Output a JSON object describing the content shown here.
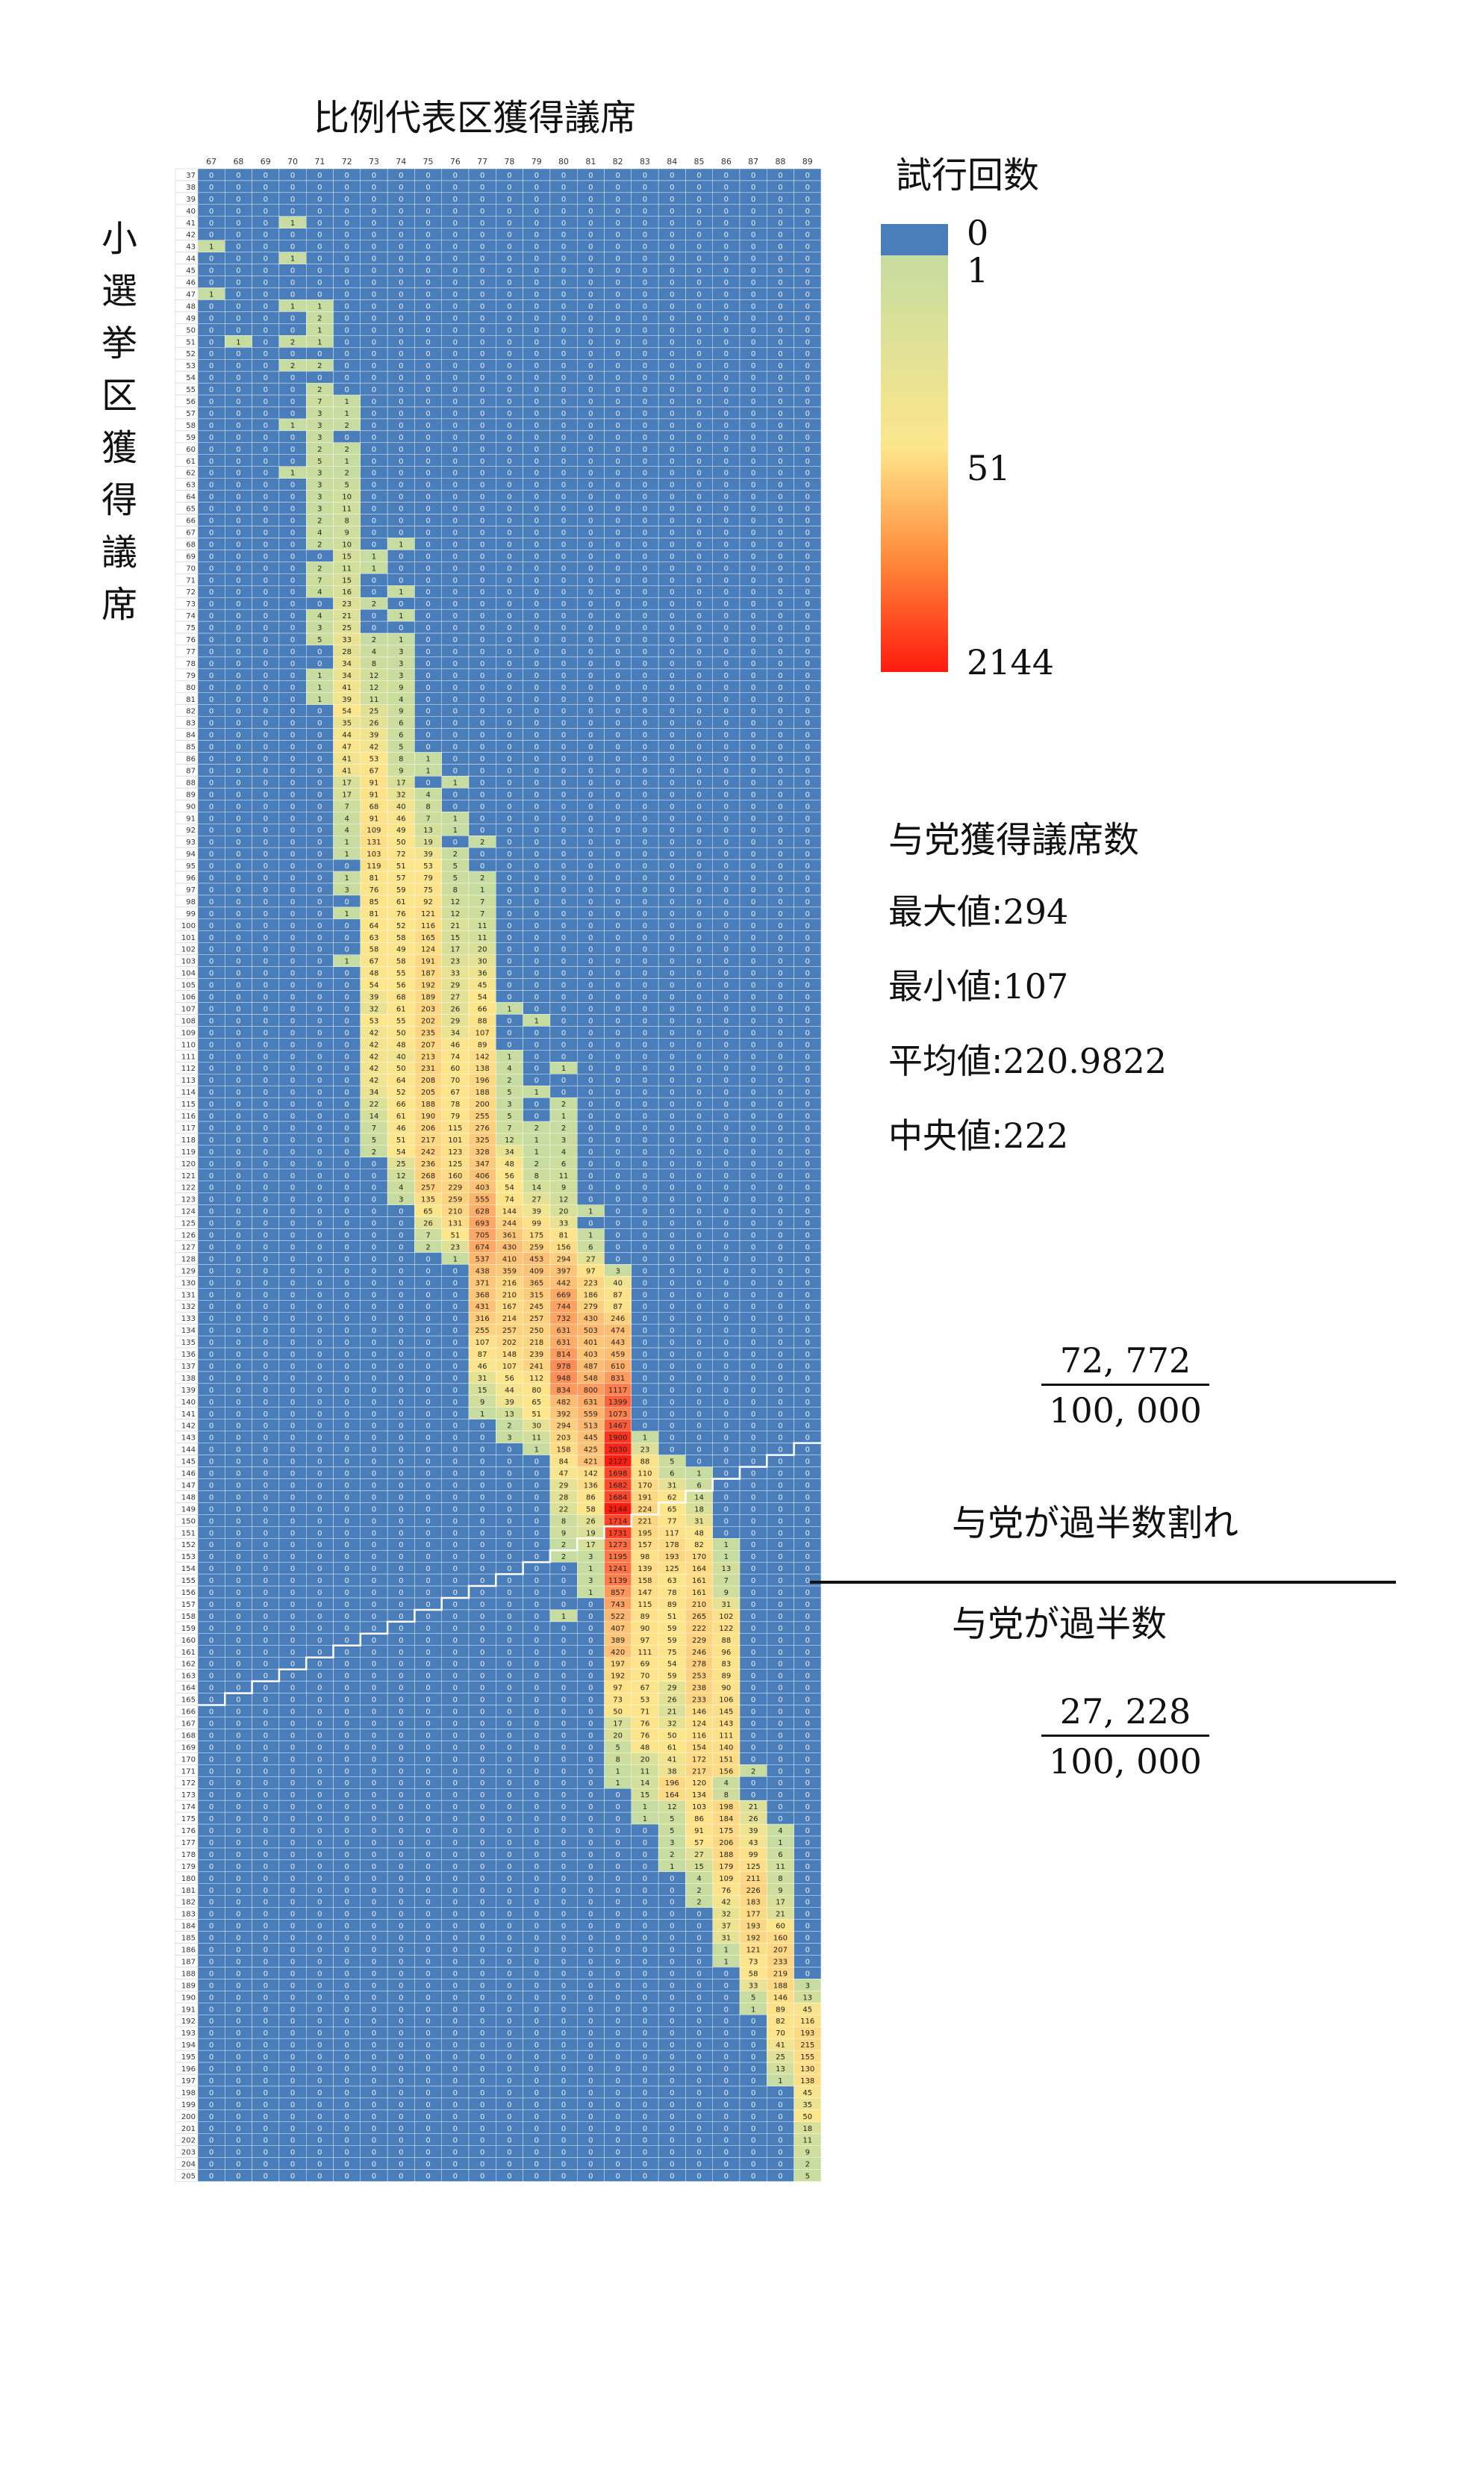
{
  "title": "比例代表区獲得議席",
  "y_axis_title": "小選挙区獲得議席",
  "legend": {
    "title": "試行回数",
    "stops": [
      "0",
      "1",
      "51",
      "2144"
    ],
    "colors": {
      "zero": "#4a7ebb",
      "low": "#c6dca0",
      "mid": "#fde68b",
      "high": "#ff1a10"
    }
  },
  "stats": {
    "title": "与党獲得議席数",
    "rows": [
      {
        "label": "最大値:",
        "value": "294"
      },
      {
        "label": "最小値:",
        "value": "107"
      },
      {
        "label": "平均値:",
        "value": "220.9822"
      },
      {
        "label": "中央値:",
        "value": "222"
      }
    ]
  },
  "above": {
    "label": "与党が過半数割れ",
    "numerator": "72, 772",
    "denominator": "100, 000"
  },
  "below": {
    "label": "与党が過半数",
    "numerator": "27, 228",
    "denominator": "100, 000"
  },
  "chart_data": {
    "type": "heatmap",
    "title": "比例代表区獲得議席",
    "xlabel": "比例代表区獲得議席",
    "ylabel": "小選挙区獲得議席",
    "x": [
      67,
      68,
      69,
      70,
      71,
      72,
      73,
      74,
      75,
      76,
      77,
      78,
      79,
      80,
      81,
      82,
      83,
      84,
      85,
      86,
      87,
      88,
      89
    ],
    "y_range": [
      37,
      205
    ],
    "total_trials": 100000,
    "majority_threshold": 233,
    "colorscale": {
      "min": 0,
      "low": 1,
      "mid": 51,
      "max": 2144
    },
    "nonzero_cells": {
      "41": {
        "70": 1
      },
      "43": {
        "67": 1
      },
      "44": {
        "70": 1
      },
      "47": {
        "67": 1
      },
      "48": {
        "70": 1,
        "71": 1
      },
      "49": {
        "71": 2
      },
      "50": {
        "71": 1
      },
      "51": {
        "68": 1,
        "70": 2,
        "71": 1
      },
      "53": {
        "70": 2,
        "71": 2
      },
      "55": {
        "71": 2
      },
      "56": {
        "71": 7,
        "72": 1
      },
      "57": {
        "71": 3,
        "72": 1
      },
      "58": {
        "70": 1,
        "71": 3,
        "72": 2
      },
      "59": {
        "71": 3
      },
      "60": {
        "71": 2,
        "72": 2
      },
      "61": {
        "71": 5,
        "72": 1
      },
      "62": {
        "70": 1,
        "71": 3,
        "72": 2
      },
      "63": {
        "71": 3,
        "72": 5
      },
      "64": {
        "71": 3,
        "72": 10
      },
      "65": {
        "71": 3,
        "72": 11
      },
      "66": {
        "71": 2,
        "72": 8
      },
      "67": {
        "71": 4,
        "72": 9
      },
      "68": {
        "71": 2,
        "72": 10,
        "74": 1
      },
      "69": {
        "72": 15,
        "73": 1
      },
      "70": {
        "71": 2,
        "72": 11,
        "73": 1
      },
      "71": {
        "71": 7,
        "72": 15
      },
      "72": {
        "71": 4,
        "72": 16,
        "74": 1
      },
      "73": {
        "72": 23,
        "73": 2
      },
      "74": {
        "71": 4,
        "72": 21,
        "74": 1
      },
      "75": {
        "71": 3,
        "72": 25
      },
      "76": {
        "71": 5,
        "72": 33,
        "73": 2,
        "74": 1
      },
      "77": {
        "72": 28,
        "73": 4,
        "74": 3
      },
      "78": {
        "72": 34,
        "73": 8,
        "74": 3
      },
      "79": {
        "71": 1,
        "72": 34,
        "73": 12,
        "74": 3
      },
      "80": {
        "71": 1,
        "72": 41,
        "73": 12,
        "74": 9
      },
      "81": {
        "71": 1,
        "72": 39,
        "73": 11,
        "74": 4
      },
      "82": {
        "72": 54,
        "73": 25,
        "74": 9
      },
      "83": {
        "72": 35,
        "73": 26,
        "74": 6
      },
      "84": {
        "72": 44,
        "73": 39,
        "74": 6
      },
      "85": {
        "72": 47,
        "73": 42,
        "74": 5
      },
      "86": {
        "72": 41,
        "73": 53,
        "74": 8,
        "75": 1
      },
      "87": {
        "72": 41,
        "73": 67,
        "74": 9,
        "75": 1
      },
      "88": {
        "72": 17,
        "73": 91,
        "74": 17,
        "76": 1
      },
      "89": {
        "72": 17,
        "73": 91,
        "74": 32,
        "75": 4
      },
      "90": {
        "72": 7,
        "73": 68,
        "74": 40,
        "75": 8
      },
      "91": {
        "72": 4,
        "73": 91,
        "74": 46,
        "75": 7,
        "76": 1
      },
      "92": {
        "72": 4,
        "73": 109,
        "74": 49,
        "75": 13,
        "76": 1
      },
      "93": {
        "72": 1,
        "73": 131,
        "74": 50,
        "75": 19,
        "77": 2
      },
      "94": {
        "72": 1,
        "73": 103,
        "74": 72,
        "75": 39,
        "76": 2
      },
      "95": {
        "73": 119,
        "74": 51,
        "75": 53,
        "76": 5
      },
      "96": {
        "72": 1,
        "73": 81,
        "74": 57,
        "75": 79,
        "76": 5,
        "77": 2
      },
      "97": {
        "72": 3,
        "73": 76,
        "74": 59,
        "75": 75,
        "76": 8,
        "77": 1
      },
      "98": {
        "73": 85,
        "74": 61,
        "75": 92,
        "76": 12,
        "77": 7
      },
      "99": {
        "72": 1,
        "73": 81,
        "74": 76,
        "75": 121,
        "76": 12,
        "77": 7
      },
      "100": {
        "73": 64,
        "74": 52,
        "75": 116,
        "76": 21,
        "77": 11
      },
      "101": {
        "73": 63,
        "74": 58,
        "75": 165,
        "76": 15,
        "77": 11
      },
      "102": {
        "73": 58,
        "74": 49,
        "75": 124,
        "76": 17,
        "77": 20
      },
      "103": {
        "72": 1,
        "73": 67,
        "74": 58,
        "75": 191,
        "76": 23,
        "77": 30
      },
      "104": {
        "73": 48,
        "74": 55,
        "75": 187,
        "76": 33,
        "77": 36
      },
      "105": {
        "73": 54,
        "74": 56,
        "75": 192,
        "76": 29,
        "77": 45
      },
      "106": {
        "73": 39,
        "74": 68,
        "75": 189,
        "76": 27,
        "77": 54
      },
      "107": {
        "73": 32,
        "74": 61,
        "75": 203,
        "76": 26,
        "77": 66,
        "78": 1
      },
      "108": {
        "73": 53,
        "74": 55,
        "75": 202,
        "76": 29,
        "77": 88,
        "79": 1
      },
      "109": {
        "73": 42,
        "74": 50,
        "75": 235,
        "76": 34,
        "77": 107
      },
      "110": {
        "73": 42,
        "74": 48,
        "75": 207,
        "76": 46,
        "77": 89
      },
      "111": {
        "73": 42,
        "74": 40,
        "75": 213,
        "76": 74,
        "77": 142,
        "78": 1
      },
      "112": {
        "73": 42,
        "74": 50,
        "75": 231,
        "76": 60,
        "77": 138,
        "78": 4,
        "80": 1
      },
      "113": {
        "73": 42,
        "74": 64,
        "75": 208,
        "76": 70,
        "77": 196,
        "78": 2
      },
      "114": {
        "73": 34,
        "74": 52,
        "75": 205,
        "76": 67,
        "77": 188,
        "78": 5,
        "79": 1
      },
      "115": {
        "73": 22,
        "74": 66,
        "75": 188,
        "76": 78,
        "77": 200,
        "78": 3,
        "80": 2
      },
      "116": {
        "73": 14,
        "74": 61,
        "75": 190,
        "76": 79,
        "77": 255,
        "78": 5,
        "80": 1
      },
      "117": {
        "73": 7,
        "74": 46,
        "75": 206,
        "76": 115,
        "77": 276,
        "78": 7,
        "79": 2,
        "80": 2
      },
      "118": {
        "73": 5,
        "74": 51,
        "75": 217,
        "76": 101,
        "77": 325,
        "78": 12,
        "79": 1,
        "80": 3
      },
      "119": {
        "73": 2,
        "74": 54,
        "75": 242,
        "76": 123,
        "77": 328,
        "78": 34,
        "79": 1,
        "80": 4
      },
      "120": {
        "74": 25,
        "75": 236,
        "76": 125,
        "77": 347,
        "78": 48,
        "79": 2,
        "80": 6
      },
      "121": {
        "74": 12,
        "75": 268,
        "76": 160,
        "77": 406,
        "78": 56,
        "79": 8,
        "80": 11
      },
      "122": {
        "74": 4,
        "75": 257,
        "76": 229,
        "77": 403,
        "78": 54,
        "79": 14,
        "80": 9
      },
      "123": {
        "74": 3,
        "75": 135,
        "76": 259,
        "77": 555,
        "78": 74,
        "79": 27,
        "80": 12
      },
      "124": {
        "75": 65,
        "76": 210,
        "77": 628,
        "78": 144,
        "79": 39,
        "80": 20,
        "81": 1
      },
      "125": {
        "75": 26,
        "76": 131,
        "77": 693,
        "78": 244,
        "79": 99,
        "80": 33
      },
      "126": {
        "75": 7,
        "76": 51,
        "77": 705,
        "78": 361,
        "79": 175,
        "80": 81,
        "81": 1
      },
      "127": {
        "75": 2,
        "76": 23,
        "77": 674,
        "78": 430,
        "79": 259,
        "80": 156,
        "81": 6
      },
      "128": {
        "76": 1,
        "77": 537,
        "78": 410,
        "79": 453,
        "80": 294,
        "81": 27
      },
      "129": {
        "77": 438,
        "78": 359,
        "79": 409,
        "80": 397,
        "81": 97,
        "82": 3
      },
      "130": {
        "77": 371,
        "78": 216,
        "79": 365,
        "80": 442,
        "81": 223,
        "82": 40
      },
      "131": {
        "77": 368,
        "78": 210,
        "79": 315,
        "80": 669,
        "81": 186,
        "82": 87
      },
      "132": {
        "77": 431,
        "78": 167,
        "79": 245,
        "80": 744,
        "81": 279,
        "82": 87
      },
      "133": {
        "77": 316,
        "78": 214,
        "79": 257,
        "80": 732,
        "81": 430,
        "82": 246
      },
      "134": {
        "77": 255,
        "78": 257,
        "79": 250,
        "80": 631,
        "81": 503,
        "82": 474
      },
      "135": {
        "77": 107,
        "78": 202,
        "79": 218,
        "80": 631,
        "81": 401,
        "82": 443
      },
      "136": {
        "77": 87,
        "78": 148,
        "79": 239,
        "80": 814,
        "81": 403,
        "82": 459
      },
      "137": {
        "77": 46,
        "78": 107,
        "79": 241,
        "80": 978,
        "81": 487,
        "82": 610
      },
      "138": {
        "77": 31,
        "78": 56,
        "79": 112,
        "80": 948,
        "81": 548,
        "82": 831
      },
      "139": {
        "77": 15,
        "78": 44,
        "79": 80,
        "80": 834,
        "81": 800,
        "82": 1117
      },
      "140": {
        "77": 9,
        "78": 39,
        "79": 65,
        "80": 482,
        "81": 631,
        "82": 1399
      },
      "141": {
        "77": 1,
        "78": 13,
        "79": 51,
        "80": 392,
        "81": 559,
        "82": 1073
      },
      "142": {
        "78": 2,
        "79": 30,
        "80": 294,
        "81": 513,
        "82": 1467
      },
      "143": {
        "78": 3,
        "79": 11,
        "80": 203,
        "81": 445,
        "82": 1900,
        "83": 1
      },
      "144": {
        "79": 1,
        "80": 158,
        "81": 425,
        "82": 2030,
        "83": 23
      },
      "145": {
        "80": 84,
        "81": 421,
        "82": 2127,
        "83": 88,
        "84": 5
      },
      "146": {
        "80": 47,
        "81": 142,
        "82": 1698,
        "83": 110,
        "84": 6,
        "85": 1
      },
      "147": {
        "80": 29,
        "81": 136,
        "82": 1682,
        "83": 170,
        "84": 31,
        "85": 6
      },
      "148": {
        "80": 28,
        "81": 86,
        "82": 1684,
        "83": 191,
        "84": 62,
        "85": 14
      },
      "149": {
        "80": 22,
        "81": 58,
        "82": 2144,
        "83": 224,
        "84": 65,
        "85": 18
      },
      "150": {
        "80": 8,
        "81": 26,
        "82": 1714,
        "83": 221,
        "84": 77,
        "85": 31
      },
      "151": {
        "80": 9,
        "81": 19,
        "82": 1731,
        "83": 195,
        "84": 117,
        "85": 48
      },
      "152": {
        "80": 2,
        "81": 17,
        "82": 1273,
        "83": 157,
        "84": 178,
        "85": 82,
        "86": 1
      },
      "153": {
        "80": 2,
        "81": 3,
        "82": 1195,
        "83": 98,
        "84": 193,
        "85": 170,
        "86": 1
      },
      "154": {
        "81": 1,
        "82": 1241,
        "83": 139,
        "84": 125,
        "85": 164,
        "86": 13
      },
      "155": {
        "81": 3,
        "82": 1139,
        "83": 158,
        "84": 63,
        "85": 161,
        "86": 7
      },
      "156": {
        "81": 1,
        "82": 857,
        "83": 147,
        "84": 78,
        "85": 161,
        "86": 9
      },
      "157": {
        "82": 743,
        "83": 115,
        "84": 89,
        "85": 210,
        "86": 31
      },
      "158": {
        "80": 1,
        "82": 522,
        "83": 89,
        "84": 51,
        "85": 265,
        "86": 102
      },
      "159": {
        "82": 407,
        "83": 90,
        "84": 59,
        "85": 222,
        "86": 122
      },
      "160": {
        "82": 389,
        "83": 97,
        "84": 59,
        "85": 229,
        "86": 88
      },
      "161": {
        "82": 420,
        "83": 111,
        "84": 75,
        "85": 246,
        "86": 96
      },
      "162": {
        "82": 197,
        "83": 69,
        "84": 54,
        "85": 278,
        "86": 83
      },
      "163": {
        "82": 192,
        "83": 70,
        "84": 59,
        "85": 253,
        "86": 89
      },
      "164": {
        "82": 97,
        "83": 67,
        "84": 29,
        "85": 238,
        "86": 90
      },
      "165": {
        "82": 73,
        "83": 53,
        "84": 26,
        "85": 233,
        "86": 106
      },
      "166": {
        "82": 50,
        "83": 71,
        "84": 21,
        "85": 146,
        "86": 145
      },
      "167": {
        "82": 17,
        "83": 76,
        "84": 32,
        "85": 124,
        "86": 143
      },
      "168": {
        "82": 20,
        "83": 76,
        "84": 50,
        "85": 116,
        "86": 111
      },
      "169": {
        "82": 5,
        "83": 48,
        "84": 61,
        "85": 154,
        "86": 140
      },
      "170": {
        "82": 8,
        "83": 20,
        "84": 41,
        "85": 172,
        "86": 151
      },
      "171": {
        "82": 1,
        "83": 11,
        "84": 38,
        "85": 217,
        "86": 156,
        "87": 2
      },
      "172": {
        "82": 1,
        "83": 14,
        "84": 196,
        "85": 120,
        "86": 4
      },
      "173": {
        "83": 15,
        "84": 164,
        "85": 134,
        "86": 8
      },
      "174": {
        "83": 1,
        "84": 12,
        "85": 103,
        "86": 198,
        "87": 21
      },
      "175": {
        "83": 1,
        "84": 5,
        "85": 86,
        "86": 184,
        "87": 26
      },
      "176": {
        "84": 5,
        "85": 91,
        "86": 175,
        "87": 39,
        "88": 4
      },
      "177": {
        "84": 3,
        "85": 57,
        "86": 206,
        "87": 43,
        "88": 1
      },
      "178": {
        "84": 2,
        "85": 27,
        "86": 188,
        "87": 99,
        "88": 6
      },
      "179": {
        "84": 1,
        "85": 15,
        "86": 179,
        "87": 125,
        "88": 11
      },
      "180": {
        "85": 4,
        "86": 109,
        "87": 211,
        "88": 8
      },
      "181": {
        "85": 2,
        "86": 76,
        "87": 226,
        "88": 9
      },
      "182": {
        "85": 2,
        "86": 42,
        "87": 183,
        "88": 17
      },
      "183": {
        "86": 32,
        "87": 177,
        "88": 21
      },
      "184": {
        "86": 37,
        "87": 193,
        "88": 60
      },
      "185": {
        "86": 31,
        "87": 192,
        "88": 160
      },
      "186": {
        "86": 1,
        "87": 121,
        "88": 207
      },
      "187": {
        "86": 1,
        "87": 73,
        "88": 233
      },
      "188": {
        "87": 58,
        "88": 219
      },
      "189": {
        "87": 33,
        "88": 188,
        "89": 3
      },
      "190": {
        "87": 5,
        "88": 146,
        "89": 13
      },
      "191": {
        "87": 1,
        "88": 89,
        "89": 45
      },
      "192": {
        "88": 82,
        "89": 116
      },
      "193": {
        "88": 70,
        "89": 193
      },
      "194": {
        "88": 41,
        "89": 215
      },
      "195": {
        "88": 25,
        "89": 155
      },
      "196": {
        "88": 13,
        "89": 130
      },
      "197": {
        "88": 1,
        "89": 138
      },
      "198": {
        "89": 45
      },
      "199": {
        "89": 35
      },
      "200": {
        "89": 50
      },
      "201": {
        "89": 18
      },
      "202": {
        "89": 11
      },
      "203": {
        "89": 9
      },
      "204": {
        "89": 2
      },
      "205": {
        "89": 5
      }
    }
  }
}
